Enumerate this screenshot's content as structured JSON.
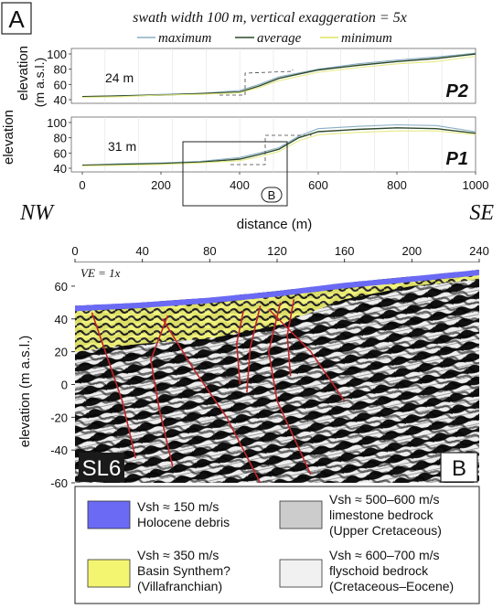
{
  "panel_a": {
    "label": "A",
    "header": "swath width 100 m, vertical exaggeration = 5x",
    "legend": {
      "maximum": "maximum",
      "average": "average",
      "minimum": "minimum"
    },
    "ylabel_outer": "elevation",
    "ylabel_inner": "elevation",
    "ylabel_units": "(m a.s.l.)",
    "xlabel": "distance (m)",
    "nw": "NW",
    "se": "SE",
    "box_label": "B"
  },
  "panel_b": {
    "label": "B",
    "ve": "VE = 1x",
    "line_name": "SL6",
    "ylabel": "elevation (m a.s.l.)",
    "units_legend": [
      {
        "vsh": "Vsh ≈ 150 m/s",
        "desc1": "Holocene debris",
        "desc2": "",
        "color": "#6a6af5"
      },
      {
        "vsh": "Vsh ≈ 500–600 m/s",
        "desc1": "limestone bedrock",
        "desc2": "(Upper Cretaceous)",
        "color": "#cccccc"
      },
      {
        "vsh": "Vsh ≈ 350 m/s",
        "desc1": "Basin Synthem?",
        "desc2": "(Villafranchian)",
        "color": "#f3f571"
      },
      {
        "vsh": "Vsh ≈ 600–700 m/s",
        "desc1": "flyschoid bedrock",
        "desc2": "(Cretaceous–Eocene)",
        "color": "#f1f1f1"
      }
    ]
  },
  "colors": {
    "maximum": "#8aaec4",
    "average": "#2d4a2a",
    "minimum": "#e6ea86",
    "fault": "#c0262b"
  },
  "chart_data": [
    {
      "type": "line",
      "name": "P2",
      "title": "P2",
      "xlim": [
        0,
        1000
      ],
      "ylim": [
        40,
        100
      ],
      "yticks": [
        40,
        60,
        80,
        100
      ],
      "callout": "24 m",
      "series": [
        {
          "name": "maximum",
          "x": [
            0,
            100,
            200,
            300,
            400,
            450,
            500,
            600,
            700,
            800,
            900,
            1000
          ],
          "y": [
            44,
            45,
            47,
            48,
            52,
            60,
            70,
            80,
            87,
            92,
            96,
            101
          ]
        },
        {
          "name": "average",
          "x": [
            0,
            100,
            200,
            300,
            400,
            450,
            500,
            600,
            700,
            800,
            900,
            1000
          ],
          "y": [
            44,
            45,
            46,
            48,
            50,
            58,
            68,
            79,
            85,
            90,
            94,
            100
          ]
        },
        {
          "name": "minimum",
          "x": [
            0,
            100,
            200,
            300,
            400,
            450,
            500,
            600,
            700,
            800,
            900,
            1000
          ],
          "y": [
            43,
            44,
            46,
            47,
            49,
            56,
            65,
            76,
            82,
            87,
            90,
            97
          ]
        }
      ]
    },
    {
      "type": "line",
      "name": "P1",
      "title": "P1",
      "xlim": [
        0,
        1000
      ],
      "ylim": [
        40,
        100
      ],
      "yticks": [
        40,
        60,
        80,
        100
      ],
      "xticks": [
        0,
        200,
        400,
        600,
        800,
        1000
      ],
      "xlabel": "distance (m)",
      "callout": "31 m",
      "series": [
        {
          "name": "maximum",
          "x": [
            0,
            100,
            200,
            300,
            400,
            450,
            500,
            550,
            600,
            700,
            800,
            900,
            1000
          ],
          "y": [
            44,
            46,
            47,
            49,
            54,
            60,
            67,
            82,
            92,
            95,
            97,
            96,
            88
          ]
        },
        {
          "name": "average",
          "x": [
            0,
            100,
            200,
            300,
            400,
            450,
            500,
            550,
            600,
            700,
            800,
            900,
            1000
          ],
          "y": [
            44,
            45,
            46,
            48,
            52,
            58,
            65,
            80,
            88,
            91,
            93,
            92,
            86
          ]
        },
        {
          "name": "minimum",
          "x": [
            0,
            100,
            200,
            300,
            400,
            450,
            500,
            550,
            600,
            700,
            800,
            900,
            1000
          ],
          "y": [
            43,
            44,
            45,
            47,
            50,
            55,
            62,
            76,
            84,
            87,
            89,
            89,
            84
          ]
        }
      ]
    },
    {
      "type": "heatmap",
      "name": "SL6",
      "xlim": [
        0,
        240
      ],
      "ylim": [
        -60,
        70
      ],
      "xticks": [
        0,
        40,
        80,
        120,
        160,
        200,
        240
      ],
      "yticks": [
        -60,
        -40,
        -20,
        0,
        20,
        40,
        60
      ],
      "ylabel": "elevation (m a.s.l.)",
      "surface": {
        "x": [
          0,
          40,
          80,
          120,
          160,
          200,
          240
        ],
        "y": [
          48,
          50,
          53,
          57,
          62,
          66,
          70
        ]
      }
    }
  ]
}
